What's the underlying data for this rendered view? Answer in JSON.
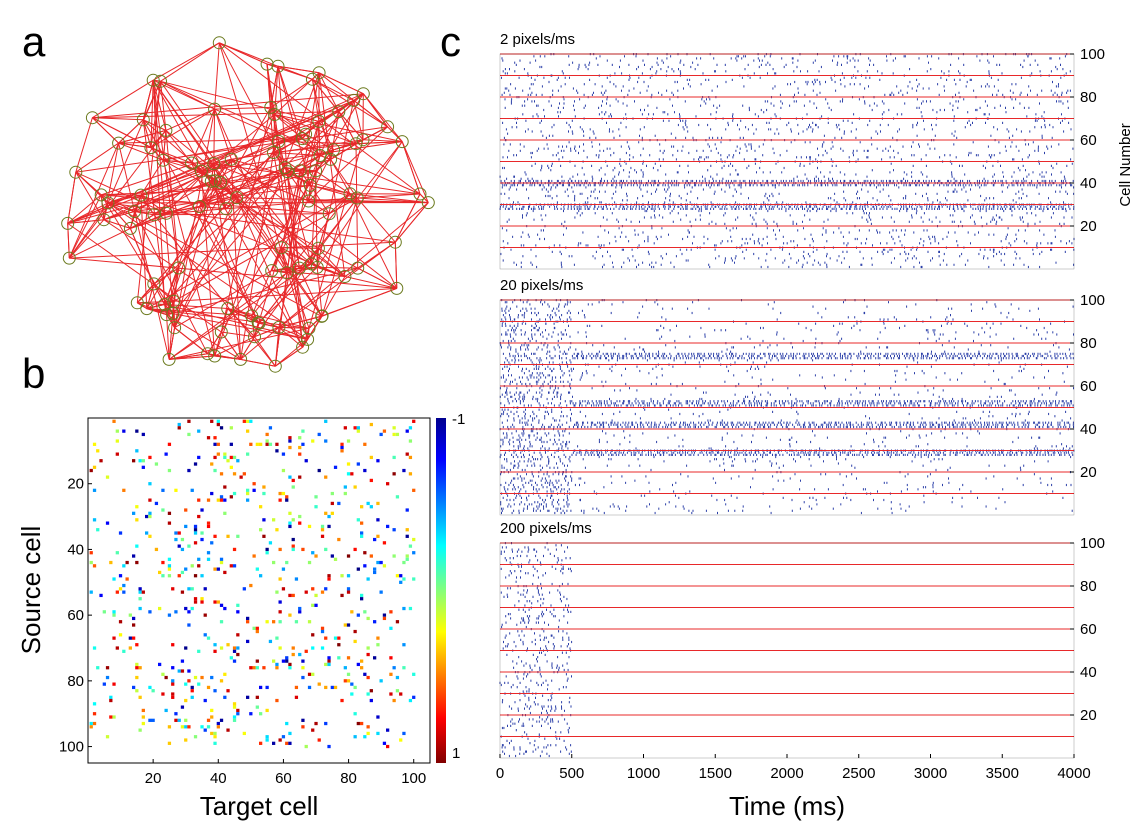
{
  "panels": {
    "a": "a",
    "b": "b",
    "c": "c"
  },
  "colors": {
    "edge": "#e8282a",
    "node": "#6b7a1e",
    "spike": "#2b3fa8",
    "sep": "#e8282a"
  },
  "chart_data": [
    {
      "type": "network",
      "panel": "a",
      "nodes": 100,
      "edge_color": "#e8282a"
    },
    {
      "type": "heatmap",
      "panel": "b",
      "xlabel": "Target cell",
      "ylabel": "Source cell",
      "xticks": [
        "20",
        "40",
        "60",
        "80",
        "100"
      ],
      "yticks": [
        "20",
        "40",
        "60",
        "80",
        "100"
      ],
      "xlim": [
        0,
        105
      ],
      "ylim": [
        0,
        105
      ],
      "colorbar": {
        "min": -1,
        "max": 1,
        "top_label": "-1",
        "bottom_label": "1",
        "colormap": "jet"
      }
    },
    {
      "type": "scatter",
      "panel": "c",
      "xlabel": "Time (ms)",
      "ylabel": "Cell Number",
      "xlim": [
        0,
        4000
      ],
      "ylim": [
        0,
        100
      ],
      "xticks": [
        "0",
        "500",
        "1000",
        "1500",
        "2000",
        "2500",
        "3000",
        "3500",
        "4000"
      ],
      "yticks": [
        "20",
        "40",
        "60",
        "80",
        "100"
      ],
      "separator_spacing": 10,
      "subplots": [
        {
          "title": "2 pixels/ms",
          "activity_end_ms": 4000,
          "persistent_rows": [
            40,
            29
          ]
        },
        {
          "title": "20 pixels/ms",
          "activity_end_ms": 4000,
          "persistent_rows": [
            74,
            52,
            42,
            29
          ]
        },
        {
          "title": "200 pixels/ms",
          "activity_end_ms": 500,
          "persistent_rows": []
        }
      ]
    }
  ]
}
